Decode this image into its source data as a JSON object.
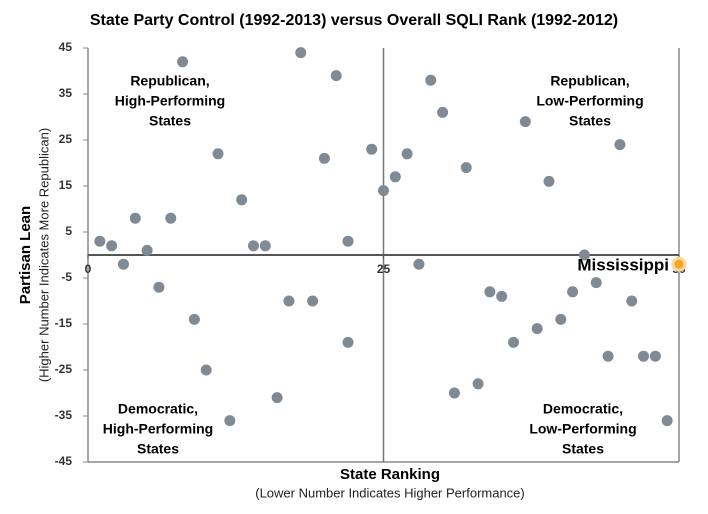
{
  "chart_data": {
    "type": "scatter",
    "title": "State Party Control (1992-2013) versus Overall SQLI Rank (1992-2012)",
    "x_label": "State Ranking",
    "x_sublabel": "(Lower Number Indicates Higher Performance)",
    "y_label": "Partisan Lean",
    "y_sublabel": "(Higher Number Indicates More Republican)",
    "color": "#7f8a95",
    "x": [
      1,
      2,
      3,
      4,
      5,
      6,
      7,
      8,
      9,
      10,
      11,
      12,
      13,
      14,
      15,
      16,
      17,
      18,
      19,
      20,
      21,
      22,
      22,
      24,
      25,
      26,
      27,
      28,
      29,
      30,
      31,
      32,
      33,
      34,
      35,
      36,
      37,
      38,
      39,
      40,
      41,
      42,
      43,
      44,
      45,
      46,
      47,
      48,
      49
    ],
    "values": [
      3,
      2,
      -2,
      8,
      1,
      -7,
      8,
      42,
      -14,
      -25,
      22,
      -36,
      12,
      2,
      2,
      -31,
      -10,
      44,
      -10,
      21,
      39,
      3,
      -19,
      23,
      14,
      17,
      22,
      -2,
      38,
      31,
      -30,
      19,
      -28,
      -8,
      -9,
      -19,
      29,
      -16,
      16,
      -14,
      -8,
      0,
      -6,
      -22,
      24,
      -10,
      -22,
      -22,
      -36
    ],
    "highlight": {
      "label": "Mississippi",
      "x": 50,
      "y": -2,
      "color": "#f5a623"
    },
    "quadrant_labels": [
      {
        "lines": [
          "Republican,",
          "High-Performing",
          "States"
        ]
      },
      {
        "lines": [
          "Republican,",
          "Low-Performing",
          "States"
        ]
      },
      {
        "lines": [
          "Democratic,",
          "High-Performing",
          "States"
        ]
      },
      {
        "lines": [
          "Democratic,",
          "Low-Performing",
          "States"
        ]
      }
    ],
    "xlim": [
      0,
      50
    ],
    "xticks": [
      0,
      25,
      50
    ],
    "ylim": [
      -45,
      45
    ],
    "yticks": [
      45,
      35,
      25,
      15,
      5,
      -5,
      -15,
      -25,
      -35,
      -45
    ]
  }
}
